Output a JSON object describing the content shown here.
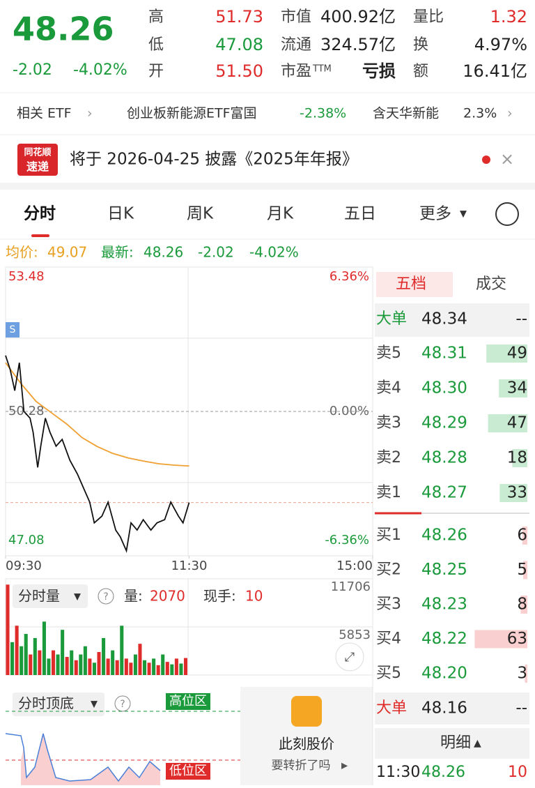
{
  "quote": {
    "price": "48.26",
    "change": "-2.02",
    "change_pct": "-4.02%",
    "stats": [
      {
        "label": "高",
        "value": "51.73",
        "color": "#e02b2b"
      },
      {
        "label": "低",
        "value": "47.08",
        "color": "#1a9a3a"
      },
      {
        "label": "开",
        "value": "51.50",
        "color": "#e02b2b"
      },
      {
        "label": "市值",
        "value": "400.92亿",
        "color": "#222222"
      },
      {
        "label": "流通",
        "value": "324.57亿",
        "color": "#222222"
      },
      {
        "label": "市盈",
        "sup": "TTM",
        "value": "亏损",
        "color": "#222222"
      },
      {
        "label": "量比",
        "value": "1.32",
        "color": "#e02b2b"
      },
      {
        "label": "换",
        "value": "4.97%",
        "color": "#222222"
      },
      {
        "label": "额",
        "value": "16.41亿",
        "color": "#222222"
      }
    ]
  },
  "etf": {
    "label": "相关 ETF",
    "name": "创业板新能源ETF富国",
    "change": "-2.38%",
    "holding": "含天华新能",
    "holding_pct": "2.3%"
  },
  "notice": {
    "logo_top": "同花顺",
    "logo_bottom": "速递",
    "text": "将于 2026-04-25 披露《2025年年报》"
  },
  "tabs": [
    "分时",
    "日K",
    "周K",
    "月K",
    "五日",
    "更多"
  ],
  "info": {
    "avg_label": "均价:",
    "avg": "49.07",
    "last_label": "最新:",
    "last": "48.26",
    "change": "-2.02",
    "change_pct": "-4.02%"
  },
  "chart": {
    "type": "line",
    "marker": "S",
    "xlim": [
      0,
      240
    ],
    "ylim": [
      47.08,
      53.48
    ],
    "xticks": [
      {
        "value": 0,
        "label": "09:30"
      },
      {
        "value": 120,
        "label": "11:30"
      },
      {
        "value": 240,
        "label": "15:00"
      }
    ],
    "yticks": [
      53.48,
      50.28,
      47.08
    ],
    "pct_ticks": [
      {
        "value": 53.48,
        "label": "6.36%"
      },
      {
        "value": 50.28,
        "label": "0.00%"
      },
      {
        "value": 47.08,
        "label": "-6.36%"
      }
    ],
    "price_color": "#111111",
    "avg_color": "#f0a030",
    "x": [
      0,
      3,
      6,
      9,
      12,
      16,
      18,
      21,
      23,
      26,
      29,
      33,
      37,
      42,
      47,
      51,
      55,
      58,
      63,
      67,
      72,
      75,
      79,
      82,
      86,
      90,
      95,
      99,
      104,
      108,
      113,
      116,
      120
    ],
    "price": [
      51.52,
      51.21,
      50.74,
      51.36,
      50.28,
      50.13,
      49.82,
      49.04,
      49.51,
      50.13,
      49.82,
      49.51,
      49.66,
      49.2,
      48.89,
      48.58,
      48.27,
      47.81,
      47.96,
      48.27,
      47.65,
      47.5,
      47.19,
      47.81,
      47.65,
      47.88,
      47.65,
      47.81,
      47.88,
      48.27,
      47.96,
      47.81,
      48.26
    ],
    "avg_x": [
      0,
      10,
      20,
      30,
      40,
      50,
      60,
      70,
      80,
      90,
      100,
      110,
      120
    ],
    "avg": [
      51.36,
      50.9,
      50.5,
      50.25,
      50.0,
      49.7,
      49.5,
      49.35,
      49.25,
      49.18,
      49.12,
      49.09,
      49.07
    ]
  },
  "volume": {
    "label": "分时量",
    "vol_label": "量:",
    "vol": "2070",
    "hand_label": "现手:",
    "hand": "10",
    "ylim": [
      0,
      11706
    ],
    "yticks": [
      11706,
      5853
    ],
    "up_color": "#e02b2b",
    "down_color": "#1a9a3a",
    "values": [
      11000,
      4000,
      6000,
      3500,
      5000,
      2500,
      4500,
      3000,
      6500,
      2000,
      3000,
      2500,
      5500,
      2200,
      3000,
      1800,
      2500,
      3500,
      2000,
      1500,
      2800,
      4500,
      2000,
      3000,
      1800,
      6000,
      2000,
      1500,
      2500,
      3800,
      1800,
      1500,
      2000,
      1200,
      2500,
      1600,
      1300,
      2000,
      1400,
      2070
    ],
    "dirs": [
      "up",
      "down",
      "up",
      "down",
      "down",
      "up",
      "down",
      "up",
      "down",
      "down",
      "up",
      "down",
      "down",
      "up",
      "down",
      "up",
      "down",
      "down",
      "up",
      "down",
      "up",
      "down",
      "up",
      "down",
      "up",
      "down",
      "up",
      "up",
      "down",
      "up",
      "down",
      "up",
      "down",
      "up",
      "down",
      "up",
      "down",
      "up",
      "down",
      "up"
    ]
  },
  "indicator": {
    "label": "分时顶底",
    "high": "高位区",
    "low": "低位区",
    "ad_title": "此刻股价",
    "ad_sub": "要转折了吗"
  },
  "book": {
    "tabs": [
      "五档",
      "成交"
    ],
    "big_sell": {
      "label": "大单",
      "price": "48.34",
      "vol": "--"
    },
    "asks": [
      {
        "label": "卖5",
        "price": "48.31",
        "vol": 49
      },
      {
        "label": "卖4",
        "price": "48.30",
        "vol": 34
      },
      {
        "label": "卖3",
        "price": "48.29",
        "vol": 47
      },
      {
        "label": "卖2",
        "price": "48.28",
        "vol": 18
      },
      {
        "label": "卖1",
        "price": "48.27",
        "vol": 33
      }
    ],
    "bids": [
      {
        "label": "买1",
        "price": "48.26",
        "vol": 6
      },
      {
        "label": "买2",
        "price": "48.25",
        "vol": 5
      },
      {
        "label": "买3",
        "price": "48.23",
        "vol": 8
      },
      {
        "label": "买4",
        "price": "48.22",
        "vol": 63
      },
      {
        "label": "买5",
        "price": "48.20",
        "vol": 3
      }
    ],
    "big_buy": {
      "label": "大单",
      "price": "48.16",
      "vol": "--"
    },
    "detail_label": "明细",
    "trade": {
      "time": "11:30",
      "price": "48.26",
      "vol": "10"
    }
  }
}
